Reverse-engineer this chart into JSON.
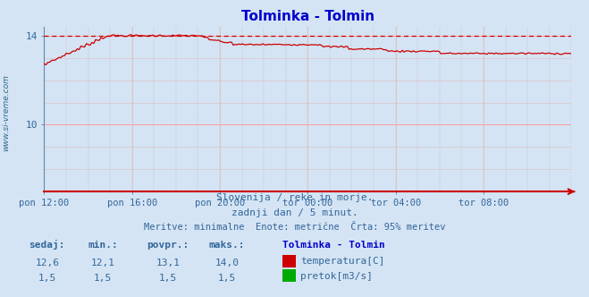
{
  "title": "Tolminka - Tolmin",
  "title_color": "#0000cc",
  "bg_color": "#d4e4f4",
  "plot_bg_color": "#d4e4f4",
  "grid_color_major": "#ff9999",
  "grid_color_minor": "#ddbbbb",
  "x_labels": [
    "pon 12:00",
    "pon 16:00",
    "pon 20:00",
    "tor 00:00",
    "tor 04:00",
    "tor 08:00"
  ],
  "y_min": 7.0,
  "y_max": 14.4,
  "y_ticks": [
    10,
    14
  ],
  "temp_color": "#cc0000",
  "pretok_color": "#00aa00",
  "dashed_line_color": "#cc0000",
  "dashed_line_y": 14.0,
  "watermark": "www.si-vreme.com",
  "watermark_color": "#336688",
  "subtitle1": "Slovenija / reke in morje.",
  "subtitle2": "zadnji dan / 5 minut.",
  "subtitle3": "Meritve: minimalne  Enote: metrične  Črta: 95% meritev",
  "subtitle_color": "#336699",
  "table_headers": [
    "sedaj:",
    "min.:",
    "povpr.:",
    "maks.:",
    "Tolminka - Tolmin"
  ],
  "table_row1_vals": [
    "12,6",
    "12,1",
    "13,1",
    "14,0"
  ],
  "table_row1_label": "temperatura[C]",
  "table_row2_vals": [
    "1,5",
    "1,5",
    "1,5",
    "1,5"
  ],
  "table_row2_label": "pretok[m3/s]",
  "table_color": "#336699",
  "table_bold_color": "#0000cc",
  "n_points": 288
}
